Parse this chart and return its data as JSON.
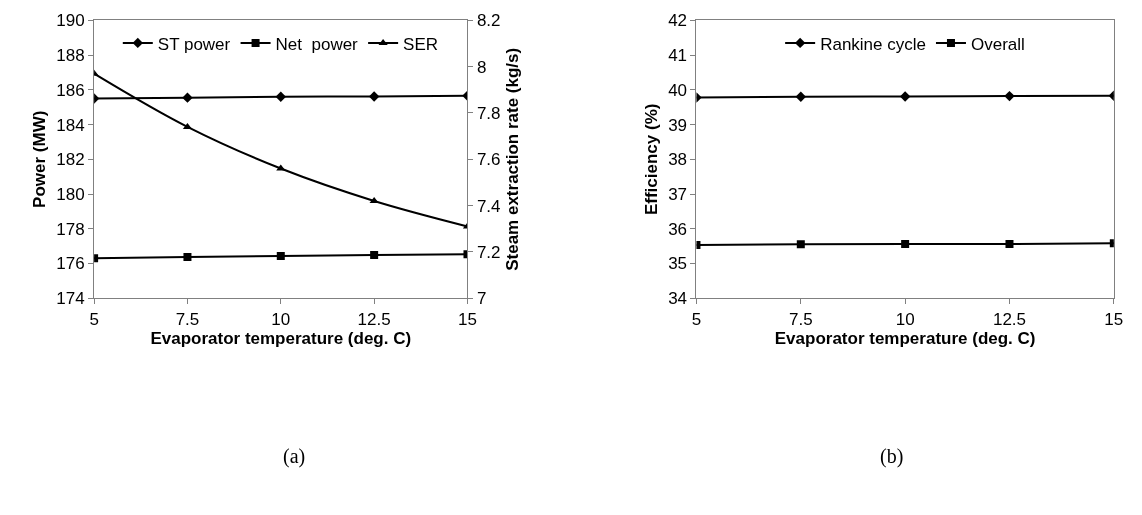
{
  "chart_data": [
    {
      "type": "line",
      "xlabel": "Evaporator temperature (deg. C)",
      "ylabel": "Power (MW)",
      "y2label": "Steam extraction rate (kg/s)",
      "x": [
        5,
        7.5,
        10,
        12.5,
        15
      ],
      "series": [
        {
          "name": "ST power",
          "color": "#000000",
          "marker": "diamond",
          "values": [
            185.5,
            185.55,
            185.6,
            185.62,
            185.66
          ]
        },
        {
          "name": "Net  power",
          "color": "#000000",
          "marker": "square",
          "values": [
            176.3,
            176.37,
            176.43,
            176.48,
            176.53
          ]
        },
        {
          "name": "SER",
          "color": "#000000",
          "marker": "triangle",
          "axis": "y2",
          "values": [
            7.97,
            7.74,
            7.56,
            7.42,
            7.31
          ]
        }
      ],
      "xlim": [
        5,
        15
      ],
      "xticks": [
        5,
        7.5,
        10,
        12.5,
        15
      ],
      "ylim": [
        174,
        190
      ],
      "yticks": [
        174,
        176,
        178,
        180,
        182,
        184,
        186,
        188,
        190
      ],
      "y2lim": [
        7,
        8.2
      ],
      "y2ticks": [
        7,
        {
          "value": 7.2,
          "label": "7.2"
        },
        {
          "value": 7.4,
          "label": "7.4"
        },
        {
          "value": 7.6,
          "label": "7.6"
        },
        {
          "value": 7.8,
          "label": "7.8"
        },
        8,
        {
          "value": 8.2,
          "label": "8.2"
        }
      ],
      "legend": "top",
      "annotations": [
        "(a)"
      ]
    },
    {
      "type": "line",
      "xlabel": "Evaporator temperature (deg. C)",
      "ylabel": "Efficiency (%)",
      "x": [
        5,
        7.5,
        10,
        12.5,
        15
      ],
      "series": [
        {
          "name": "Rankine cycle",
          "color": "#000000",
          "marker": "diamond",
          "values": [
            39.78,
            39.8,
            39.81,
            39.82,
            39.83
          ]
        },
        {
          "name": "Overall",
          "color": "#000000",
          "marker": "square",
          "values": [
            35.53,
            35.55,
            35.56,
            35.56,
            35.58
          ]
        }
      ],
      "xlim": [
        5,
        15
      ],
      "xticks": [
        5,
        7.5,
        10,
        12.5,
        15
      ],
      "ylim": [
        34,
        42
      ],
      "yticks": [
        34,
        35,
        36,
        37,
        38,
        39,
        40,
        41,
        42
      ],
      "legend": "top",
      "annotations": [
        "(b)"
      ]
    }
  ]
}
